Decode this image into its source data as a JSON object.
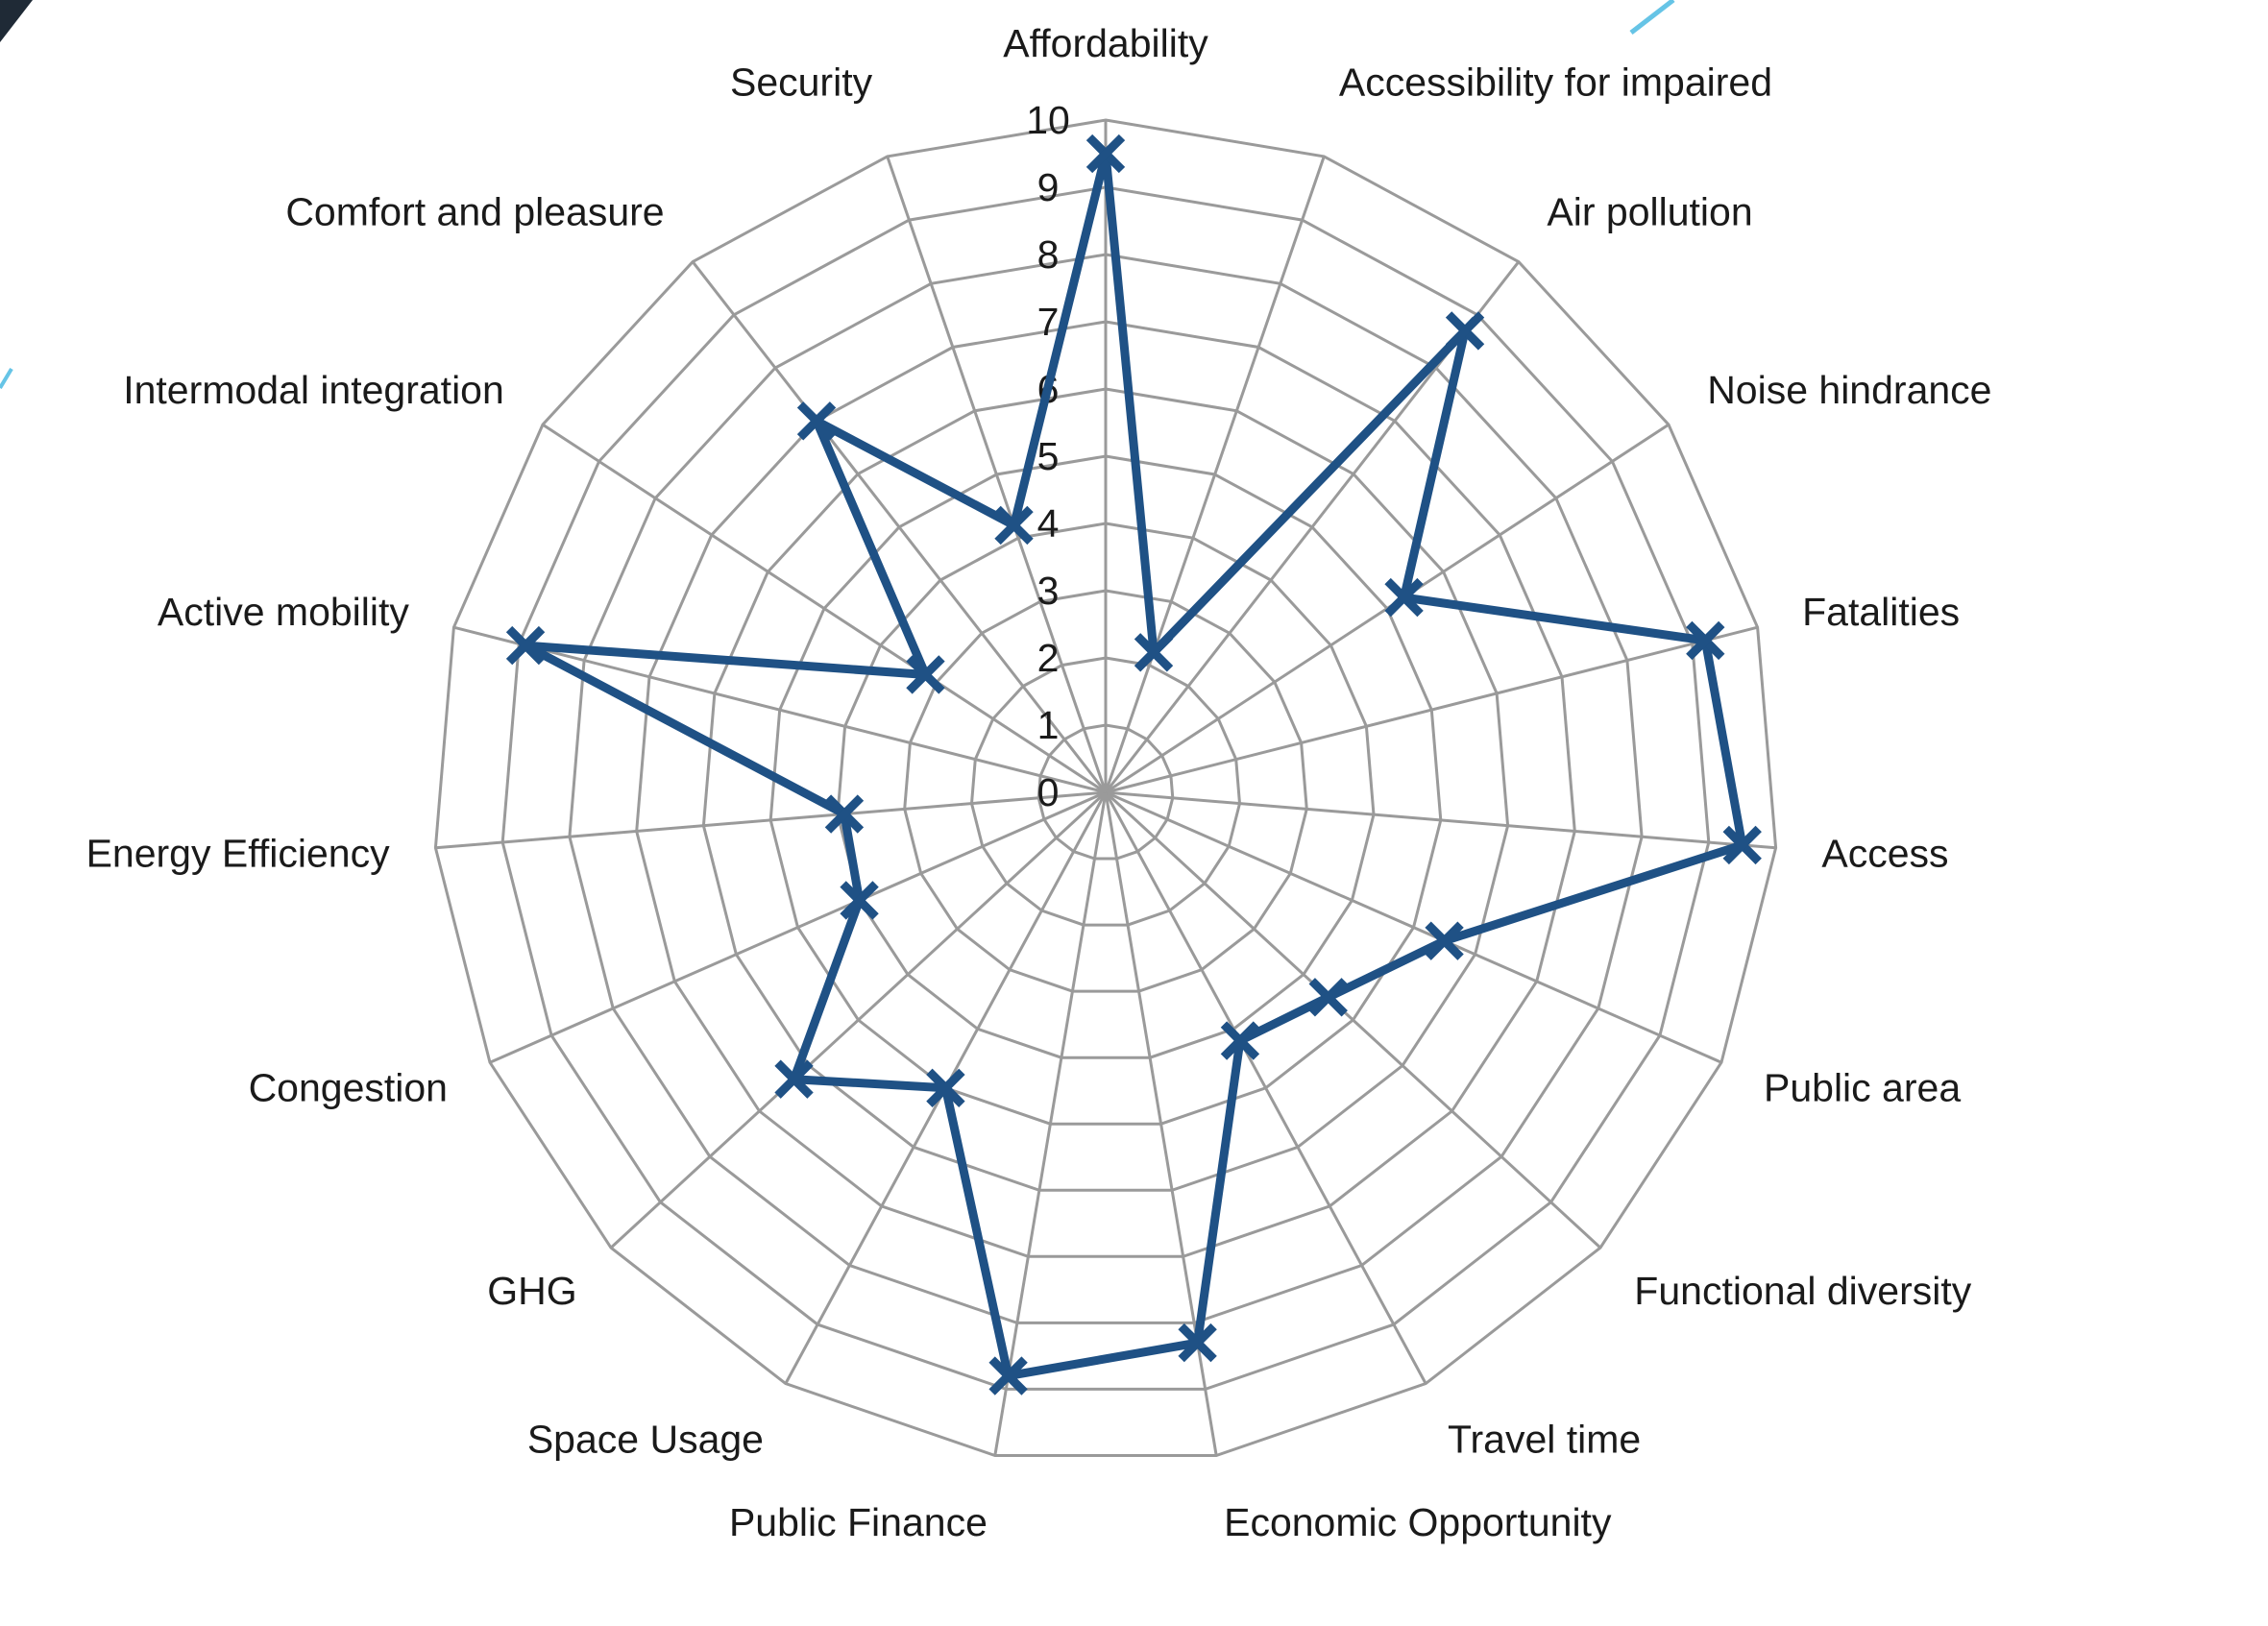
{
  "chart_data": {
    "type": "radar",
    "title": "",
    "categories": [
      "Affordability",
      "Accessibility for impaired",
      "Air pollution",
      "Noise hindrance",
      "Fatalities",
      "Access",
      "Public area",
      "Functional diversity",
      "Travel time",
      "Economic Opportunity",
      "Public Finance",
      "Space Usage",
      "GHG",
      "Congestion",
      "Energy Efficiency",
      "Active mobility",
      "Intermodal integration",
      "Comfort and pleasure",
      "Security"
    ],
    "series": [
      {
        "values": [
          9.5,
          2.2,
          8.7,
          5.3,
          9.2,
          9.5,
          5.5,
          4.5,
          4.2,
          8.3,
          8.8,
          5.0,
          6.3,
          4.0,
          3.9,
          8.9,
          3.2,
          7.0,
          4.2
        ]
      }
    ],
    "ylim": [
      0,
      10
    ],
    "ticks": [
      "0",
      "1",
      "2",
      "3",
      "4",
      "5",
      "6",
      "7",
      "8",
      "9",
      "10"
    ],
    "grid": true,
    "colors": {
      "series": "#1f5185",
      "grid": "#9a9a9a",
      "text": "#1a1a1a"
    },
    "marker": "x"
  }
}
